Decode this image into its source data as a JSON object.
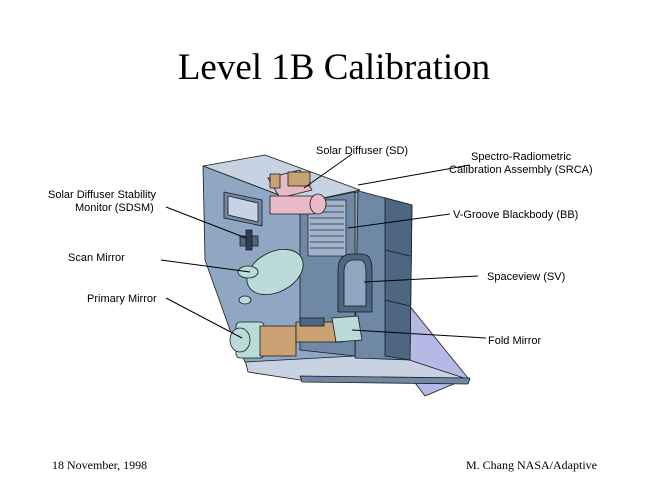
{
  "title": "Level 1B Calibration",
  "footer": {
    "date": "18 November, 1998",
    "credit": "M. Chang NASA/Adaptive"
  },
  "labels": {
    "sd": "Solar Diffuser (SD)",
    "srca_1": "Spectro-Radiometric",
    "srca_2": "Calibration Assembly (SRCA)",
    "sdsm_1": "Solar Diffuser Stability",
    "sdsm_2": "Monitor (SDSM)",
    "bb": "V-Groove Blackbody (BB)",
    "scan_mirror": "Scan Mirror",
    "sv": "Spaceview (SV)",
    "primary_mirror": "Primary Mirror",
    "fold_mirror": "Fold Mirror"
  },
  "colors": {
    "housing_face": "#8fa7c2",
    "housing_side": "#6f88a6",
    "housing_dark": "#4d6682",
    "panel_light": "#c7d3e3",
    "mirror": "#b9dcd8",
    "pink": "#e7b9c9",
    "tan": "#c9a173",
    "lavender": "#b4b9e6"
  }
}
